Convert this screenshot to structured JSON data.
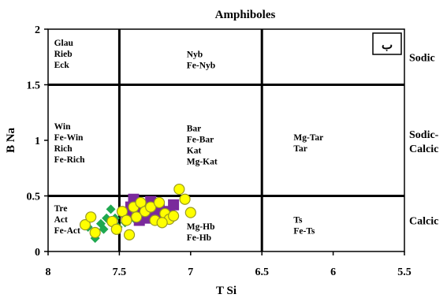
{
  "chart_data": {
    "type": "scatter",
    "title": "Amphiboles",
    "xlabel": "T Si",
    "ylabel": "B Na",
    "xlim": [
      8,
      5.5
    ],
    "ylim": [
      0,
      2
    ],
    "x_reversed": true,
    "xticks": [
      "8",
      "7.5",
      "7",
      "6.5",
      "6",
      "5.5"
    ],
    "yticks": [
      "0",
      "0.5",
      "1",
      "1.5",
      "2"
    ],
    "panel_label": "ب",
    "boundaries": {
      "vertical_x": [
        7.5,
        6.5
      ],
      "horizontal_y": [
        0.5,
        1.5
      ]
    },
    "fields": [
      {
        "lines": [
          "Glau",
          "Rieb",
          "Eck"
        ],
        "x": 7.98,
        "y": 1.85
      },
      {
        "lines": [
          "Nyb",
          "Fe-Nyb"
        ],
        "x": 7.05,
        "y": 1.75
      },
      {
        "lines": [
          "Win",
          "Fe-Win",
          "Rich",
          "Fe-Rich"
        ],
        "x": 7.98,
        "y": 1.1
      },
      {
        "lines": [
          "Bar",
          "Fe-Bar",
          "Kat",
          "Mg-Kat"
        ],
        "x": 7.05,
        "y": 1.08
      },
      {
        "lines": [
          "Mg-Tar",
          "Tar"
        ],
        "x": 6.3,
        "y": 1.0
      },
      {
        "lines": [
          "Tre",
          "Act",
          "Fe-Act"
        ],
        "x": 7.98,
        "y": 0.36
      },
      {
        "lines": [
          "Mg-Hb",
          "Fe-Hb"
        ],
        "x": 7.05,
        "y": 0.2
      },
      {
        "lines": [
          "Ts",
          "Fe-Ts"
        ],
        "x": 6.3,
        "y": 0.26
      }
    ],
    "side_labels": [
      {
        "lines": [
          "Sodic"
        ],
        "y": 1.75
      },
      {
        "lines": [
          "Sodic-",
          "Calcic"
        ],
        "y": 1.0
      },
      {
        "lines": [
          "Calcic"
        ],
        "y": 0.28
      }
    ],
    "series": [
      {
        "marker": "diamond",
        "color": "#1fa84f",
        "points": [
          [
            7.72,
            0.22
          ],
          [
            7.67,
            0.12
          ],
          [
            7.63,
            0.25
          ],
          [
            7.59,
            0.3
          ],
          [
            7.56,
            0.38
          ],
          [
            7.53,
            0.3
          ],
          [
            7.51,
            0.22
          ],
          [
            7.48,
            0.34
          ],
          [
            7.46,
            0.26
          ],
          [
            7.43,
            0.33
          ],
          [
            7.4,
            0.3
          ],
          [
            7.61,
            0.2
          ]
        ]
      },
      {
        "marker": "square",
        "color": "#7a2a9c",
        "points": [
          [
            7.45,
            0.33
          ],
          [
            7.42,
            0.4
          ],
          [
            7.4,
            0.47
          ],
          [
            7.37,
            0.35
          ],
          [
            7.33,
            0.4
          ],
          [
            7.28,
            0.45
          ],
          [
            7.25,
            0.33
          ],
          [
            7.22,
            0.38
          ],
          [
            7.18,
            0.3
          ],
          [
            7.15,
            0.36
          ],
          [
            7.12,
            0.42
          ],
          [
            7.36,
            0.28
          ],
          [
            7.3,
            0.3
          ]
        ]
      },
      {
        "marker": "circle",
        "color": "#ffff00",
        "stroke": "#9a9a20",
        "points": [
          [
            7.74,
            0.24
          ],
          [
            7.7,
            0.31
          ],
          [
            7.67,
            0.17
          ],
          [
            7.55,
            0.27
          ],
          [
            7.52,
            0.2
          ],
          [
            7.48,
            0.36
          ],
          [
            7.45,
            0.28
          ],
          [
            7.43,
            0.15
          ],
          [
            7.4,
            0.4
          ],
          [
            7.38,
            0.31
          ],
          [
            7.35,
            0.44
          ],
          [
            7.32,
            0.36
          ],
          [
            7.28,
            0.4
          ],
          [
            7.25,
            0.28
          ],
          [
            7.22,
            0.44
          ],
          [
            7.18,
            0.34
          ],
          [
            7.15,
            0.29
          ],
          [
            7.08,
            0.56
          ],
          [
            7.04,
            0.47
          ],
          [
            7.0,
            0.35
          ],
          [
            7.12,
            0.32
          ],
          [
            7.2,
            0.26
          ]
        ]
      }
    ]
  }
}
